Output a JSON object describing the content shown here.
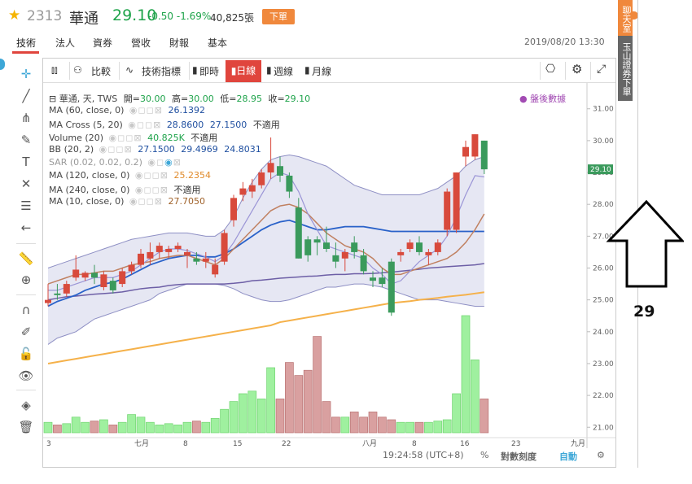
{
  "header": {
    "code": "2313",
    "name": "華通",
    "price": "29.10",
    "change": "-0.50 -1.69%",
    "volume": "40,825張",
    "order_button": "下單"
  },
  "tabs": [
    {
      "label": "技術"
    },
    {
      "label": "法人"
    },
    {
      "label": "資券"
    },
    {
      "label": "營收"
    },
    {
      "label": "財報"
    },
    {
      "label": "基本"
    }
  ],
  "datetime": "2019/08/20 13:30",
  "side_strip": {
    "chat": "聊天室",
    "broker": "玉山證券下單"
  },
  "toolbar": {
    "compare": "比較",
    "indicators": "技術指標",
    "intraday": "即時",
    "daily": "日線",
    "weekly": "週線",
    "monthly": "月線"
  },
  "legend": {
    "ohlc_label": "華通, 天, TWS",
    "open_label": "開=",
    "open": "30.00",
    "high_label": "高=",
    "high": "30.00",
    "low_label": "低=",
    "low": "28.95",
    "close_label": "收=",
    "close": "29.10",
    "ma60_label": "MA (60, close, 0)",
    "ma60": "26.1392",
    "macross_label": "MA Cross (5, 20)",
    "macross_1": "28.8600",
    "macross_2": "27.1500",
    "macross_3": "不適用",
    "volume_label": "Volume (20)",
    "volume_1": "40.825K",
    "volume_2": "不適用",
    "bb_label": "BB (20, 2)",
    "bb_1": "27.1500",
    "bb_2": "29.4969",
    "bb_3": "24.8031",
    "sar_label": "SAR (0.02, 0.02, 0.2)",
    "ma120_label": "MA (120, close, 0)",
    "ma120": "25.2354",
    "ma240_label": "MA (240, close, 0)",
    "ma240": "不適用",
    "ma10_label": "MA (10, close, 0)",
    "ma10": "27.7050",
    "post_market": "盤後數據"
  },
  "status_bar": {
    "time": "19:24:58 (UTC+8)",
    "percent": "%",
    "log_scale": "對數刻度",
    "auto": "自動"
  },
  "annotation": {
    "text": "29"
  },
  "colors": {
    "up": "#d84a3c",
    "down": "#3a9a5c",
    "accent": "#e0453d",
    "bb_fill": "#e3e4f2"
  },
  "chart_data": {
    "type": "candlestick",
    "y_ticks": [
      "31.00",
      "30.00",
      "29.00",
      "28.00",
      "27.00",
      "26.00",
      "25.00",
      "24.00",
      "23.00",
      "22.00",
      "21.00"
    ],
    "ylim": [
      20.7,
      31.3
    ],
    "x_ticks": [
      "3",
      "七月",
      "8",
      "15",
      "22",
      "八月",
      "8",
      "16",
      "23",
      "九月"
    ],
    "last_price_label": "29.10",
    "candles": [
      {
        "o": 24.9,
        "h": 25.5,
        "l": 24.8,
        "c": 25.0,
        "v": 40
      },
      {
        "o": 25.2,
        "h": 25.5,
        "l": 25.0,
        "c": 25.15,
        "v": 30
      },
      {
        "o": 25.2,
        "h": 25.6,
        "l": 25.1,
        "c": 25.5,
        "v": 35
      },
      {
        "o": 25.7,
        "h": 26.4,
        "l": 25.6,
        "c": 25.95,
        "v": 60
      },
      {
        "o": 25.7,
        "h": 25.9,
        "l": 25.6,
        "c": 25.85,
        "v": 40
      },
      {
        "o": 25.85,
        "h": 26.1,
        "l": 25.5,
        "c": 25.7,
        "v": 45
      },
      {
        "o": 25.4,
        "h": 25.9,
        "l": 25.3,
        "c": 25.8,
        "v": 50
      },
      {
        "o": 25.6,
        "h": 25.7,
        "l": 25.2,
        "c": 25.3,
        "v": 30
      },
      {
        "o": 25.5,
        "h": 26.0,
        "l": 25.4,
        "c": 25.9,
        "v": 40
      },
      {
        "o": 25.9,
        "h": 26.2,
        "l": 25.8,
        "c": 26.1,
        "v": 70
      },
      {
        "o": 26.1,
        "h": 26.6,
        "l": 26.0,
        "c": 26.45,
        "v": 60
      },
      {
        "o": 26.3,
        "h": 26.8,
        "l": 26.1,
        "c": 26.5,
        "v": 40
      },
      {
        "o": 26.5,
        "h": 26.8,
        "l": 26.3,
        "c": 26.7,
        "v": 30
      },
      {
        "o": 26.5,
        "h": 26.7,
        "l": 26.3,
        "c": 26.6,
        "v": 35
      },
      {
        "o": 26.6,
        "h": 26.8,
        "l": 26.5,
        "c": 26.7,
        "v": 30
      },
      {
        "o": 26.4,
        "h": 26.6,
        "l": 26.0,
        "c": 26.5,
        "v": 40
      },
      {
        "o": 26.3,
        "h": 26.5,
        "l": 26.1,
        "c": 26.2,
        "v": 45
      },
      {
        "o": 26.2,
        "h": 26.5,
        "l": 26.0,
        "c": 26.3,
        "v": 40
      },
      {
        "o": 25.8,
        "h": 26.3,
        "l": 25.7,
        "c": 26.1,
        "v": 55
      },
      {
        "o": 26.2,
        "h": 27.2,
        "l": 26.1,
        "c": 27.1,
        "v": 90
      },
      {
        "o": 27.5,
        "h": 28.3,
        "l": 27.3,
        "c": 28.2,
        "v": 120
      },
      {
        "o": 28.3,
        "h": 28.7,
        "l": 28.1,
        "c": 28.5,
        "v": 150
      },
      {
        "o": 28.4,
        "h": 28.8,
        "l": 28.2,
        "c": 28.6,
        "v": 160
      },
      {
        "o": 28.6,
        "h": 29.1,
        "l": 28.5,
        "c": 29.0,
        "v": 130
      },
      {
        "o": 29.0,
        "h": 30.1,
        "l": 28.8,
        "c": 29.3,
        "v": 250
      },
      {
        "o": 29.2,
        "h": 29.5,
        "l": 28.7,
        "c": 28.9,
        "v": 130
      },
      {
        "o": 28.9,
        "h": 29.0,
        "l": 28.2,
        "c": 28.4,
        "v": 270
      },
      {
        "o": 27.9,
        "h": 28.2,
        "l": 26.3,
        "c": 26.3,
        "v": 220
      },
      {
        "o": 26.9,
        "h": 27.0,
        "l": 26.2,
        "c": 26.4,
        "v": 240
      },
      {
        "o": 26.9,
        "h": 27.0,
        "l": 26.4,
        "c": 26.8,
        "v": 370
      },
      {
        "o": 26.8,
        "h": 27.3,
        "l": 26.5,
        "c": 26.6,
        "v": 120
      },
      {
        "o": 26.4,
        "h": 26.8,
        "l": 26.0,
        "c": 26.2,
        "v": 60
      },
      {
        "o": 26.3,
        "h": 26.6,
        "l": 25.9,
        "c": 26.5,
        "v": 60
      },
      {
        "o": 26.8,
        "h": 27.0,
        "l": 26.3,
        "c": 26.5,
        "v": 80
      },
      {
        "o": 26.4,
        "h": 26.6,
        "l": 25.8,
        "c": 25.9,
        "v": 60
      },
      {
        "o": 25.7,
        "h": 25.9,
        "l": 25.4,
        "c": 25.6,
        "v": 80
      },
      {
        "o": 25.7,
        "h": 26.0,
        "l": 25.4,
        "c": 25.5,
        "v": 60
      },
      {
        "o": 26.2,
        "h": 26.3,
        "l": 24.5,
        "c": 24.6,
        "v": 50
      },
      {
        "o": 26.4,
        "h": 26.6,
        "l": 26.2,
        "c": 26.5,
        "v": 40
      },
      {
        "o": 26.6,
        "h": 26.9,
        "l": 26.5,
        "c": 26.8,
        "v": 40
      },
      {
        "o": 26.8,
        "h": 27.0,
        "l": 26.4,
        "c": 26.5,
        "v": 40
      },
      {
        "o": 26.4,
        "h": 26.6,
        "l": 26.1,
        "c": 26.5,
        "v": 40
      },
      {
        "o": 26.5,
        "h": 26.9,
        "l": 26.4,
        "c": 26.8,
        "v": 45
      },
      {
        "o": 27.2,
        "h": 28.5,
        "l": 27.0,
        "c": 28.4,
        "v": 50
      },
      {
        "o": 27.2,
        "h": 29.0,
        "l": 27.1,
        "c": 29.0,
        "v": 150
      },
      {
        "o": 29.5,
        "h": 30.0,
        "l": 29.2,
        "c": 29.8,
        "v": 450
      },
      {
        "o": 29.5,
        "h": 30.2,
        "l": 29.4,
        "c": 30.2,
        "v": 280
      },
      {
        "o": 30.0,
        "h": 30.0,
        "l": 28.95,
        "c": 29.1,
        "v": 130
      }
    ],
    "ma10": [
      25.5,
      25.6,
      25.7,
      25.8,
      25.8,
      25.85,
      25.9,
      25.9,
      26.0,
      26.1,
      26.15,
      26.2,
      26.3,
      26.35,
      26.4,
      26.4,
      26.3,
      26.2,
      26.1,
      26.3,
      26.6,
      26.9,
      27.2,
      27.5,
      27.8,
      27.95,
      28.0,
      27.9,
      27.7,
      27.4,
      27.1,
      26.9,
      26.7,
      26.6,
      26.5,
      26.3,
      26.0,
      25.8,
      25.8,
      25.9,
      26.0,
      26.1,
      26.2,
      26.3,
      26.5,
      26.8,
      27.2,
      27.7
    ],
    "ma20": [
      24.8,
      24.95,
      25.05,
      25.15,
      25.3,
      25.4,
      25.5,
      25.55,
      25.65,
      25.8,
      25.95,
      26.1,
      26.2,
      26.3,
      26.35,
      26.4,
      26.4,
      26.35,
      26.35,
      26.45,
      26.6,
      26.8,
      27.0,
      27.2,
      27.35,
      27.45,
      27.5,
      27.4,
      27.3,
      27.2,
      27.2,
      27.25,
      27.3,
      27.3,
      27.3,
      27.25,
      27.2,
      27.15,
      27.15,
      27.15,
      27.15,
      27.15,
      27.15,
      27.15,
      27.15,
      27.15,
      27.15,
      27.15
    ],
    "ma60": [
      25.0,
      25.05,
      25.1,
      25.12,
      25.15,
      25.18,
      25.2,
      25.22,
      25.25,
      25.3,
      25.35,
      25.38,
      25.4,
      25.45,
      25.48,
      25.5,
      25.5,
      25.5,
      25.5,
      25.5,
      25.52,
      25.55,
      25.6,
      25.62,
      25.65,
      25.68,
      25.7,
      25.72,
      25.74,
      25.75,
      25.78,
      25.8,
      25.8,
      25.82,
      25.82,
      25.83,
      25.85,
      25.87,
      25.9,
      25.93,
      25.96,
      26.0,
      26.02,
      26.04,
      26.06,
      26.08,
      26.1,
      26.14
    ],
    "ma120": [
      23.0,
      23.05,
      23.1,
      23.15,
      23.2,
      23.25,
      23.3,
      23.35,
      23.4,
      23.45,
      23.5,
      23.55,
      23.6,
      23.65,
      23.7,
      23.75,
      23.8,
      23.85,
      23.9,
      23.95,
      24.0,
      24.05,
      24.1,
      24.15,
      24.2,
      24.3,
      24.35,
      24.4,
      24.45,
      24.5,
      24.55,
      24.6,
      24.65,
      24.7,
      24.75,
      24.8,
      24.85,
      24.9,
      24.93,
      24.96,
      25.0,
      25.03,
      25.06,
      25.1,
      25.13,
      25.16,
      25.2,
      25.24
    ],
    "ma5": [
      25.3,
      25.3,
      25.4,
      25.5,
      25.6,
      25.7,
      25.7,
      25.7,
      25.8,
      25.9,
      26.1,
      26.3,
      26.5,
      26.6,
      26.6,
      26.55,
      26.45,
      26.35,
      26.2,
      26.4,
      26.8,
      27.3,
      27.8,
      28.3,
      28.8,
      29.0,
      28.9,
      28.4,
      27.7,
      27.2,
      26.7,
      26.6,
      26.5,
      26.4,
      26.3,
      26.0,
      25.8,
      25.5,
      25.6,
      25.9,
      26.2,
      26.4,
      26.6,
      27.0,
      27.6,
      28.3,
      28.9,
      28.86
    ],
    "bb_upper": [
      26.0,
      26.1,
      26.2,
      26.3,
      26.4,
      26.5,
      26.6,
      26.7,
      26.8,
      26.9,
      26.95,
      27.0,
      27.05,
      27.1,
      27.1,
      27.1,
      27.05,
      27.0,
      27.0,
      27.2,
      27.6,
      28.2,
      28.7,
      29.1,
      29.4,
      29.5,
      29.55,
      29.5,
      29.4,
      29.3,
      29.2,
      29.0,
      28.8,
      28.6,
      28.5,
      28.4,
      28.3,
      28.3,
      28.3,
      28.3,
      28.3,
      28.4,
      28.5,
      28.7,
      28.9,
      29.2,
      29.4,
      29.5
    ],
    "bb_lower": [
      23.6,
      23.8,
      23.9,
      24.0,
      24.2,
      24.4,
      24.5,
      24.6,
      24.7,
      24.8,
      24.9,
      25.0,
      25.2,
      25.3,
      25.4,
      25.5,
      25.5,
      25.5,
      25.5,
      25.45,
      25.35,
      25.2,
      25.1,
      25.0,
      24.95,
      24.95,
      25.0,
      25.1,
      25.2,
      25.3,
      25.4,
      25.4,
      25.45,
      25.5,
      25.5,
      25.45,
      25.4,
      25.3,
      25.2,
      25.1,
      25.0,
      25.0,
      25.0,
      24.95,
      24.9,
      24.85,
      24.8,
      24.8
    ]
  }
}
